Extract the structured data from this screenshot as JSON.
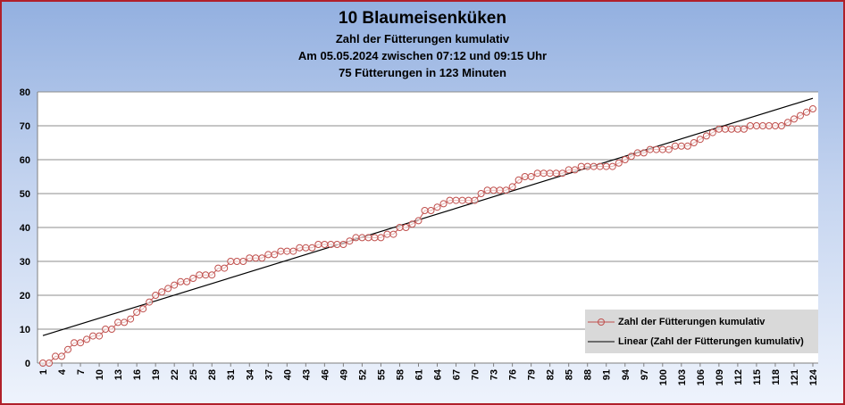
{
  "chart_data": {
    "type": "line",
    "title": "10 Blaumeisenküken",
    "subtitles": [
      "Zahl der Fütterungen kumulativ",
      "Am 05.05.2024 zwischen 07:12  und 09:15 Uhr",
      "75 Fütterungen in 123 Minuten"
    ],
    "xlabel": "",
    "ylabel": "",
    "ylim": [
      0,
      80
    ],
    "yticks": [
      0,
      10,
      20,
      30,
      40,
      50,
      60,
      70,
      80
    ],
    "x_first": 1,
    "x_last": 124,
    "x_tick_step": 3,
    "grid": "horizontal",
    "legend_position": "bottom-right",
    "series": [
      {
        "name": "Zahl der Fütterungen kumulativ",
        "color": "#c0504d",
        "marker": "circle",
        "values": [
          0,
          0,
          2,
          2,
          4,
          6,
          6,
          7,
          8,
          8,
          10,
          10,
          12,
          12,
          13,
          15,
          16,
          18,
          20,
          21,
          22,
          23,
          24,
          24,
          25,
          26,
          26,
          26,
          28,
          28,
          30,
          30,
          30,
          31,
          31,
          31,
          32,
          32,
          33,
          33,
          33,
          34,
          34,
          34,
          35,
          35,
          35,
          35,
          35,
          36,
          37,
          37,
          37,
          37,
          37,
          38,
          38,
          40,
          40,
          41,
          42,
          45,
          45,
          46,
          47,
          48,
          48,
          48,
          48,
          48,
          50,
          51,
          51,
          51,
          51,
          52,
          54,
          55,
          55,
          56,
          56,
          56,
          56,
          56,
          57,
          57,
          58,
          58,
          58,
          58,
          58,
          58,
          59,
          60,
          61,
          62,
          62,
          63,
          63,
          63,
          63,
          64,
          64,
          64,
          65,
          66,
          67,
          68,
          69,
          69,
          69,
          69,
          69,
          70,
          70,
          70,
          70,
          70,
          70,
          71,
          72,
          73,
          74,
          75
        ]
      },
      {
        "name": "Linear (Zahl  der Fütterungen kumulativ)",
        "color": "#000000",
        "type": "trendline",
        "start": [
          1,
          8.1
        ],
        "end": [
          124,
          78.1
        ]
      }
    ]
  }
}
